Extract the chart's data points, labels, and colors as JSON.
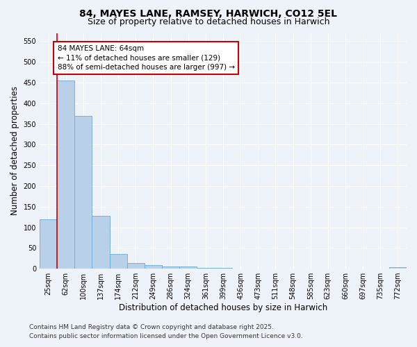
{
  "title_line1": "84, MAYES LANE, RAMSEY, HARWICH, CO12 5EL",
  "title_line2": "Size of property relative to detached houses in Harwich",
  "xlabel": "Distribution of detached houses by size in Harwich",
  "ylabel": "Number of detached properties",
  "categories": [
    "25sqm",
    "62sqm",
    "100sqm",
    "137sqm",
    "174sqm",
    "212sqm",
    "249sqm",
    "286sqm",
    "324sqm",
    "361sqm",
    "399sqm",
    "436sqm",
    "473sqm",
    "511sqm",
    "548sqm",
    "585sqm",
    "623sqm",
    "660sqm",
    "697sqm",
    "735sqm",
    "772sqm"
  ],
  "values": [
    120,
    455,
    370,
    127,
    35,
    14,
    9,
    5,
    5,
    2,
    2,
    0,
    0,
    0,
    0,
    0,
    0,
    0,
    0,
    0,
    3
  ],
  "bar_color": "#b8d0e8",
  "bar_edge_color": "#6aaad4",
  "highlight_line_color": "#cc0000",
  "annotation_text": "84 MAYES LANE: 64sqm\n← 11% of detached houses are smaller (129)\n88% of semi-detached houses are larger (997) →",
  "annotation_box_facecolor": "#ffffff",
  "annotation_box_edgecolor": "#cc0000",
  "ylim": [
    0,
    570
  ],
  "yticks": [
    0,
    50,
    100,
    150,
    200,
    250,
    300,
    350,
    400,
    450,
    500,
    550
  ],
  "background_color": "#eef2f9",
  "grid_color": "#ffffff",
  "footer_line1": "Contains HM Land Registry data © Crown copyright and database right 2025.",
  "footer_line2": "Contains public sector information licensed under the Open Government Licence v3.0.",
  "title_fontsize": 10,
  "subtitle_fontsize": 9,
  "axis_label_fontsize": 8.5,
  "tick_fontsize": 7,
  "annotation_fontsize": 7.5,
  "footer_fontsize": 6.5
}
